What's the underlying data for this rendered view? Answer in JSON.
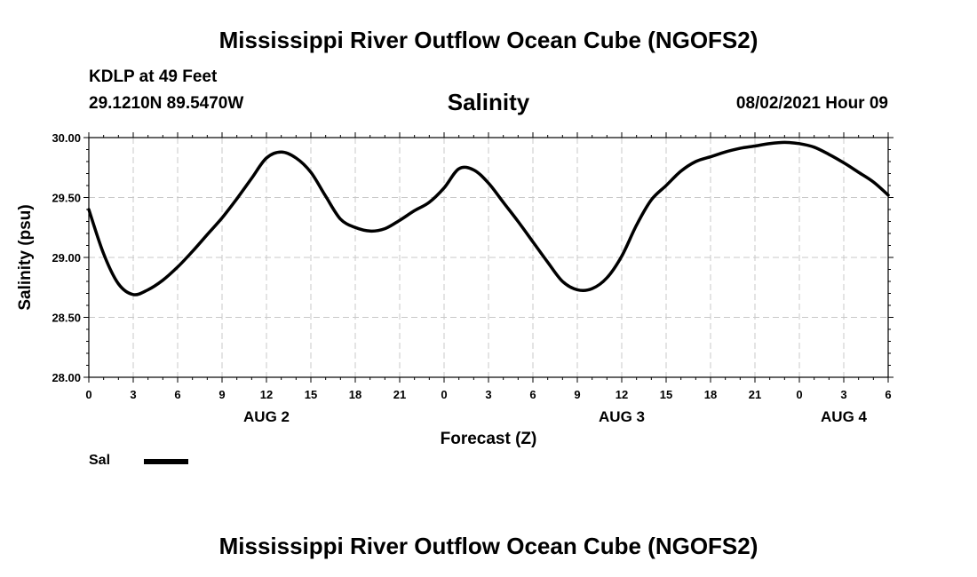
{
  "header": {
    "title": "Mississippi River Outflow Ocean Cube (NGOFS2)",
    "station": "KDLP at 49 Feet",
    "coords": "29.1210N  89.5470W",
    "variable": "Salinity",
    "datetime": "08/02/2021 Hour 09"
  },
  "footer": {
    "title": "Mississippi River Outflow Ocean Cube (NGOFS2)"
  },
  "legend": {
    "label": "Sal",
    "color": "#000000"
  },
  "chart_data": {
    "type": "line",
    "title": "Salinity",
    "xlabel": "Forecast (Z)",
    "ylabel": "Salinity (psu)",
    "xlim": [
      0,
      54
    ],
    "ylim": [
      28.0,
      30.0
    ],
    "yticks": [
      "28.00",
      "28.50",
      "29.00",
      "29.50",
      "30.00"
    ],
    "xtick_hours": [
      0,
      3,
      6,
      9,
      12,
      15,
      18,
      21,
      24,
      27,
      30,
      33,
      36,
      39,
      42,
      45,
      48,
      51,
      54
    ],
    "xtick_labels": [
      "0",
      "3",
      "6",
      "9",
      "12",
      "15",
      "18",
      "21",
      "0",
      "3",
      "6",
      "9",
      "12",
      "15",
      "18",
      "21",
      "0",
      "3",
      "6"
    ],
    "date_labels": [
      {
        "hour": 12,
        "label": "AUG 2"
      },
      {
        "hour": 36,
        "label": "AUG 3"
      },
      {
        "hour": 51,
        "label": "AUG 4"
      }
    ],
    "grid": true,
    "legend_position": "bottom-left",
    "series": [
      {
        "name": "Sal",
        "color": "#000000",
        "x": [
          0,
          1,
          2,
          3,
          4,
          5,
          6,
          7,
          8,
          9,
          10,
          11,
          12,
          13,
          14,
          15,
          16,
          17,
          18,
          19,
          20,
          21,
          22,
          23,
          24,
          25,
          26,
          27,
          28,
          29,
          30,
          31,
          32,
          33,
          34,
          35,
          36,
          37,
          38,
          39,
          40,
          41,
          42,
          43,
          44,
          45,
          46,
          47,
          48,
          49,
          50,
          51,
          52,
          53,
          54
        ],
        "values": [
          29.4,
          29.03,
          28.78,
          28.69,
          28.73,
          28.81,
          28.92,
          29.05,
          29.19,
          29.33,
          29.49,
          29.66,
          29.83,
          29.88,
          29.83,
          29.71,
          29.51,
          29.32,
          29.25,
          29.22,
          29.24,
          29.31,
          29.39,
          29.46,
          29.58,
          29.74,
          29.73,
          29.62,
          29.46,
          29.3,
          29.13,
          28.96,
          28.8,
          28.73,
          28.74,
          28.83,
          29.01,
          29.27,
          29.48,
          29.6,
          29.72,
          29.8,
          29.84,
          29.88,
          29.91,
          29.93,
          29.95,
          29.96,
          29.95,
          29.92,
          29.86,
          29.79,
          29.71,
          29.63,
          29.52
        ]
      }
    ]
  }
}
